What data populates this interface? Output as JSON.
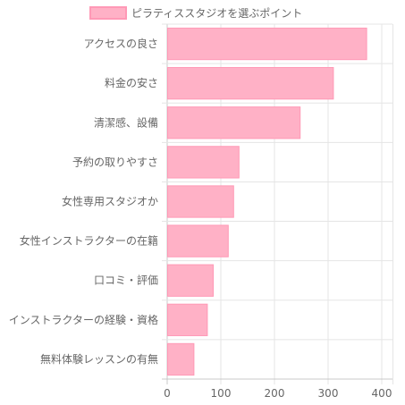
{
  "chart_data": {
    "type": "bar",
    "orientation": "horizontal",
    "legend": {
      "position": "top",
      "entries": [
        "ピラティススタジオを選ぶポイント"
      ]
    },
    "categories": [
      "アクセスの良さ",
      "料金の安さ",
      "清潔感、設備",
      "予約の取りやすさ",
      "女性専用スタジオか",
      "女性インストラクターの在籍",
      "口コミ・評価",
      "インストラクターの経験・資格",
      "無料体験レッスンの有無"
    ],
    "series": [
      {
        "name": "ピラティススタジオを選ぶポイント",
        "values": [
          371,
          309,
          247,
          133,
          123,
          113,
          85,
          74,
          49
        ],
        "color": "#ffb1c6",
        "border_color": "#ff99b6"
      }
    ],
    "xlim": [
      0,
      420
    ],
    "x_ticks": [
      "0",
      "100",
      "200",
      "300",
      "400"
    ],
    "grid": true,
    "grid_color": "#e5e5e5",
    "axis_color": "#c8c8c8",
    "text_color": "#666666"
  }
}
